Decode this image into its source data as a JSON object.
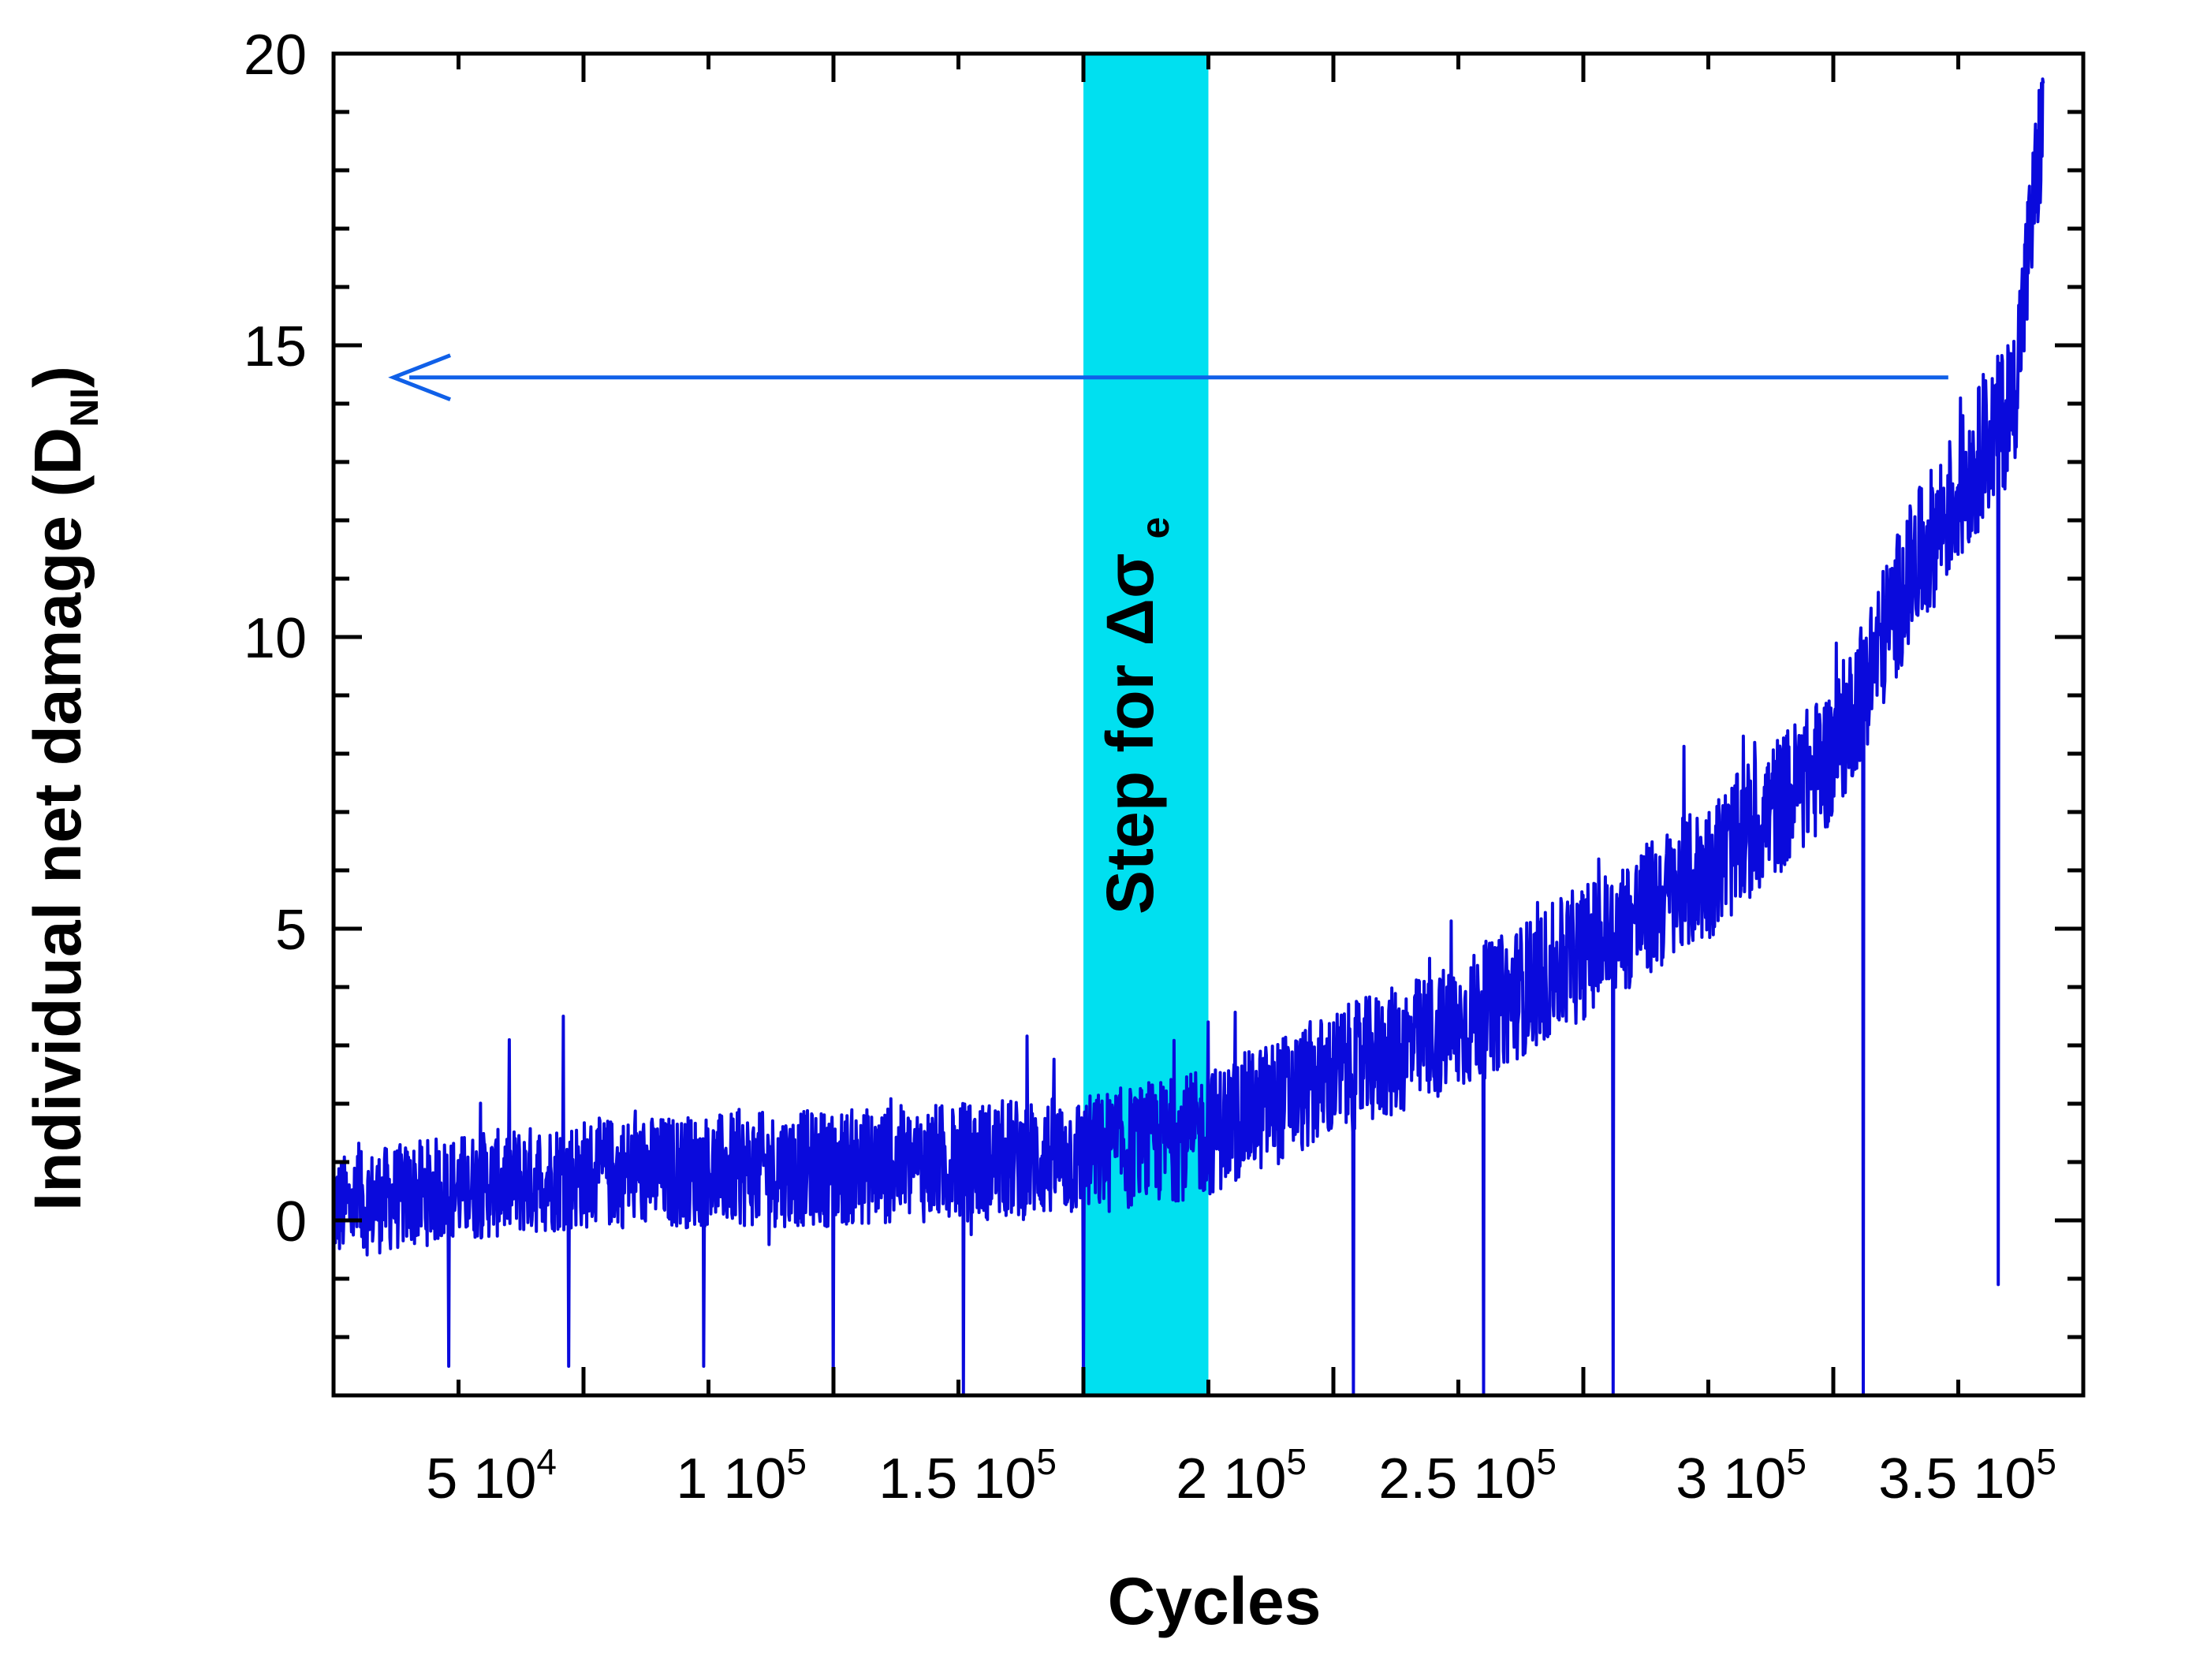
{
  "chart_data": {
    "type": "line",
    "title": "",
    "xlabel": "Cycles",
    "ylabel_main": "Individual net damage (D",
    "ylabel_sub": "NI",
    "ylabel_close": ")",
    "xlim": [
      0,
      350000
    ],
    "ylim": [
      -3,
      20
    ],
    "x_ticks": [
      {
        "value": 50000,
        "mant": "5 10",
        "exp": "4"
      },
      {
        "value": 100000,
        "mant": "1 10",
        "exp": "5"
      },
      {
        "value": 150000,
        "mant": "1.5 10",
        "exp": "5"
      },
      {
        "value": 200000,
        "mant": "2 10",
        "exp": "5"
      },
      {
        "value": 250000,
        "mant": "2.5 10",
        "exp": "5"
      },
      {
        "value": 300000,
        "mant": "3 10",
        "exp": "5"
      },
      {
        "value": 350000,
        "mant": "3.5 10",
        "exp": "5"
      }
    ],
    "y_ticks": [
      {
        "value": 0,
        "label": "0"
      },
      {
        "value": 5,
        "label": "5"
      },
      {
        "value": 10,
        "label": "10"
      },
      {
        "value": 15,
        "label": "15"
      },
      {
        "value": 20,
        "label": "20"
      }
    ],
    "band": {
      "x_start": 150000,
      "x_end": 175000,
      "color": "#00e0f0",
      "label_main": "Step for Δσ",
      "label_sub": "e"
    },
    "arrow": {
      "y": 14.45,
      "x_from": 323000,
      "x_to": 12000,
      "color": "#1060e8"
    },
    "series": [
      {
        "name": "Individual net damage",
        "color": "#0a0adc",
        "trend": [
          [
            0,
            0.2
          ],
          [
            20000,
            0.5
          ],
          [
            50000,
            0.8
          ],
          [
            100000,
            0.9
          ],
          [
            150000,
            1.1
          ],
          [
            175000,
            1.5
          ],
          [
            200000,
            2.5
          ],
          [
            225000,
            3.3
          ],
          [
            250000,
            4.6
          ],
          [
            275000,
            6.0
          ],
          [
            300000,
            8.0
          ],
          [
            315000,
            11.0
          ],
          [
            330000,
            13.2
          ],
          [
            336000,
            14.0
          ],
          [
            342000,
            19.0
          ]
        ],
        "noise_amplitude": 0.9,
        "dips": [
          {
            "x": 23000,
            "y": -2.5
          },
          {
            "x": 47000,
            "y": -2.5
          },
          {
            "x": 74000,
            "y": -2.5
          },
          {
            "x": 100000,
            "y": -3
          },
          {
            "x": 126000,
            "y": -3
          },
          {
            "x": 150000,
            "y": -3
          },
          {
            "x": 175000,
            "y": -3
          },
          {
            "x": 204000,
            "y": -3
          },
          {
            "x": 230000,
            "y": -3
          },
          {
            "x": 256000,
            "y": -3
          },
          {
            "x": 282000,
            "y": -0.7
          },
          {
            "x": 306000,
            "y": -3
          },
          {
            "x": 333000,
            "y": -1.1
          }
        ],
        "spikes": [
          {
            "x": 46000,
            "y": 3.5
          },
          {
            "x": 175000,
            "y": 3.4
          },
          {
            "x": 282000,
            "y": 8.3
          },
          {
            "x": 330000,
            "y": 14.5
          },
          {
            "x": 343000,
            "y": 19.4
          }
        ]
      }
    ]
  }
}
